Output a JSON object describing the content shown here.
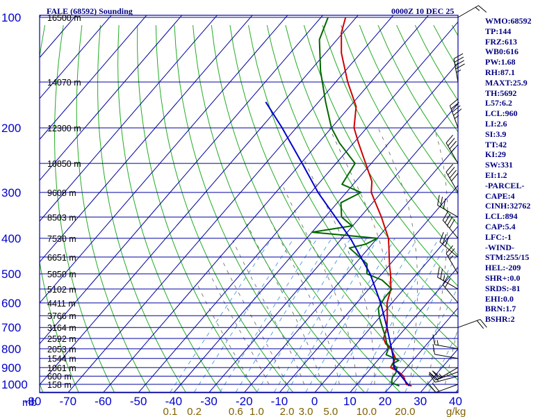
{
  "header": {
    "title": "FALE (68592) Sounding",
    "timestamp": "0000Z 10 DEC 25"
  },
  "indices": [
    "WMO:68592",
    "TP:144",
    "FRZ:613",
    "WB0:616",
    "PW:1.68",
    "RH:87.1",
    "MAXT:25.9",
    "TH:5692",
    "L57:6.2",
    "LCL:960",
    "LI:2.6",
    "SI:3.9",
    "TT:42",
    "KI:29",
    "SW:331",
    "EI:1.2",
    "-PARCEL-",
    "CAPE:4",
    "CINH:32762",
    "LCL:894",
    "CAP:5.4",
    "LFC:-1",
    "-WIND-",
    "STM:255/15",
    "HEL:-209",
    "SHR+:0.0",
    "SRDS:-81",
    "EHI:0.0",
    "BRN:1.7",
    "BSHR:2"
  ],
  "colors": {
    "grid": "#0000a0",
    "axis_text": "#0000cc",
    "height_text": "#000000",
    "dry_adiabat": "#22aa22",
    "moist_adiabat": "#707070",
    "mixing_ratio": "#4499dd",
    "temperature": "#cc0000",
    "dewpoint": "#006600",
    "parcel": "#0000cc",
    "mixing_label": "#806000",
    "wind": "#000000"
  },
  "chart_data": {
    "type": "line",
    "diagram": "skew-T log-P",
    "pressure_ticks": [
      "100",
      "200",
      "300",
      "400",
      "500",
      "600",
      "700",
      "800",
      "900",
      "1000"
    ],
    "pressure_unit": "mb",
    "temperature_ticks": [
      "-80",
      "-70",
      "-60",
      "-50",
      "-40",
      "-30",
      "-20",
      "-10",
      "0",
      "10",
      "20",
      "30",
      "40"
    ],
    "mixing_ratio_ticks": [
      "0.1",
      "0.2",
      "0.6",
      "1.0",
      "2.0",
      "3.0",
      "5.0",
      "10.0",
      "20.0"
    ],
    "mixing_ratio_unit": "g/kg",
    "height_labels": [
      {
        "p": 100,
        "label": "16500 m"
      },
      {
        "p": 150,
        "label": "14070 m"
      },
      {
        "p": 200,
        "label": "12300 m"
      },
      {
        "p": 250,
        "label": "10850 m"
      },
      {
        "p": 300,
        "label": "9608 m"
      },
      {
        "p": 350,
        "label": "8503 m"
      },
      {
        "p": 400,
        "label": "7530 m"
      },
      {
        "p": 450,
        "label": "6651 m"
      },
      {
        "p": 500,
        "label": "5850 m"
      },
      {
        "p": 550,
        "label": "5102 m"
      },
      {
        "p": 600,
        "label": "4411 m"
      },
      {
        "p": 650,
        "label": "3766 m"
      },
      {
        "p": 700,
        "label": "3164 m"
      },
      {
        "p": 750,
        "label": "2592 m"
      },
      {
        "p": 800,
        "label": "2053 m"
      },
      {
        "p": 850,
        "label": "1544 m"
      },
      {
        "p": 900,
        "label": "1061 m"
      },
      {
        "p": 950,
        "label": "600 m"
      },
      {
        "p": 1000,
        "label": "158 m"
      }
    ],
    "series": [
      {
        "key": "temperature",
        "points": [
          [
            1010,
            25.9
          ],
          [
            1000,
            24.0
          ],
          [
            950,
            21.2
          ],
          [
            925,
            18.8
          ],
          [
            900,
            15.4
          ],
          [
            850,
            14.6
          ],
          [
            800,
            11.0
          ],
          [
            775,
            8.2
          ],
          [
            750,
            6.3
          ],
          [
            700,
            4.6
          ],
          [
            650,
            1.8
          ],
          [
            600,
            -1.4
          ],
          [
            550,
            -3.7
          ],
          [
            500,
            -7.5
          ],
          [
            475,
            -9.8
          ],
          [
            450,
            -12.0
          ],
          [
            425,
            -14.3
          ],
          [
            400,
            -16.8
          ],
          [
            375,
            -20.3
          ],
          [
            350,
            -24.0
          ],
          [
            325,
            -28.3
          ],
          [
            300,
            -32.9
          ],
          [
            280,
            -35.4
          ],
          [
            250,
            -41.6
          ],
          [
            220,
            -48.6
          ],
          [
            200,
            -53.6
          ],
          [
            175,
            -58.2
          ],
          [
            150,
            -66.6
          ],
          [
            125,
            -75.5
          ],
          [
            110,
            -80.5
          ],
          [
            100,
            -83.0
          ]
        ]
      },
      {
        "key": "dewpoint",
        "points": [
          [
            1010,
            22.4
          ],
          [
            990,
            19.4
          ],
          [
            960,
            18.4
          ],
          [
            930,
            18.2
          ],
          [
            900,
            17.2
          ],
          [
            880,
            15.0
          ],
          [
            860,
            16.0
          ],
          [
            830,
            11.0
          ],
          [
            800,
            10.2
          ],
          [
            770,
            8.2
          ],
          [
            740,
            6.3
          ],
          [
            700,
            3.3
          ],
          [
            660,
            0.2
          ],
          [
            620,
            -2.6
          ],
          [
            580,
            -3.4
          ],
          [
            550,
            -3.4
          ],
          [
            520,
            -8.4
          ],
          [
            500,
            -14.2
          ],
          [
            470,
            -16.6
          ],
          [
            440,
            -22.4
          ],
          [
            425,
            -25.5
          ],
          [
            415,
            -21.8
          ],
          [
            400,
            -20.0
          ],
          [
            392,
            -30.4
          ],
          [
            385,
            -40.0
          ],
          [
            370,
            -30.2
          ],
          [
            350,
            -35.3
          ],
          [
            320,
            -39.0
          ],
          [
            300,
            -35.8
          ],
          [
            285,
            -43.2
          ],
          [
            250,
            -44.6
          ],
          [
            220,
            -54.0
          ],
          [
            200,
            -60.0
          ],
          [
            170,
            -68.0
          ],
          [
            140,
            -77.0
          ],
          [
            115,
            -85.0
          ],
          [
            100,
            -88.0
          ]
        ]
      },
      {
        "key": "parcel",
        "points": [
          [
            1010,
            25.2
          ],
          [
            900,
            16.4
          ],
          [
            850,
            14.0
          ],
          [
            800,
            11.1
          ],
          [
            700,
            4.6
          ],
          [
            600,
            -3.2
          ],
          [
            500,
            -13.3
          ],
          [
            400,
            -27.6
          ],
          [
            300,
            -48.0
          ],
          [
            250,
            -59.6
          ],
          [
            200,
            -74.0
          ],
          [
            170,
            -85.0
          ]
        ]
      }
    ],
    "wind_barbs": [
      {
        "p": 1000,
        "dir": 250,
        "kt": 20
      },
      {
        "p": 950,
        "dir": 255,
        "kt": 15
      },
      {
        "p": 925,
        "dir": 250,
        "kt": 25
      },
      {
        "p": 900,
        "dir": 240,
        "kt": 20
      },
      {
        "p": 850,
        "dir": 280,
        "kt": 10
      },
      {
        "p": 800,
        "dir": 280,
        "kt": 15
      },
      {
        "p": 700,
        "dir": 70,
        "kt": 20
      },
      {
        "p": 600,
        "dir": 320,
        "kt": 20
      },
      {
        "p": 550,
        "dir": 300,
        "kt": 25
      },
      {
        "p": 500,
        "dir": 330,
        "kt": 25
      },
      {
        "p": 450,
        "dir": 310,
        "kt": 30
      },
      {
        "p": 400,
        "dir": 320,
        "kt": 40
      },
      {
        "p": 350,
        "dir": 300,
        "kt": 30
      },
      {
        "p": 300,
        "dir": 330,
        "kt": 40
      },
      {
        "p": 250,
        "dir": 330,
        "kt": 35
      },
      {
        "p": 200,
        "dir": 340,
        "kt": 45
      },
      {
        "p": 150,
        "dir": 350,
        "kt": 45
      },
      {
        "p": 100,
        "dir": 60,
        "kt": 15
      }
    ]
  }
}
